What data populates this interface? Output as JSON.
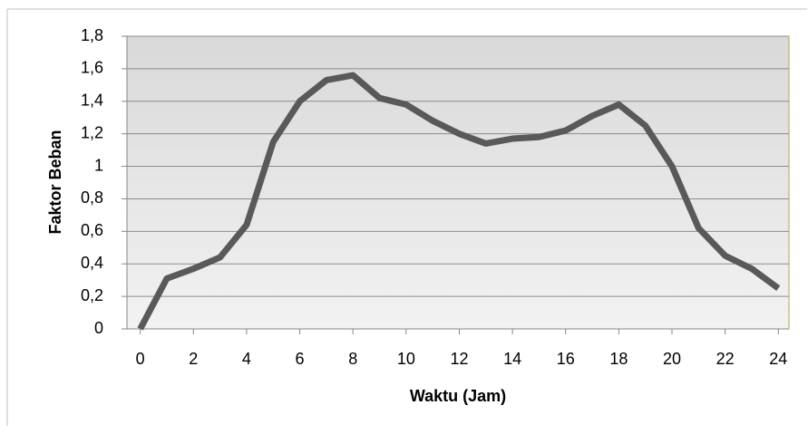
{
  "chart_data": {
    "type": "line",
    "x_label": "Waktu (Jam)",
    "y_label": "Faktor Beban",
    "x": [
      0,
      1,
      2,
      3,
      4,
      5,
      6,
      7,
      8,
      9,
      10,
      11,
      12,
      13,
      14,
      15,
      16,
      17,
      18,
      19,
      20,
      21,
      22,
      23,
      24
    ],
    "series": [
      {
        "color": "#595959",
        "values": [
          0,
          0.31,
          0.37,
          0.44,
          0.64,
          1.15,
          1.4,
          1.53,
          1.56,
          1.42,
          1.38,
          1.28,
          1.2,
          1.14,
          1.17,
          1.18,
          1.22,
          1.31,
          1.38,
          1.25,
          1.0,
          0.62,
          0.45,
          0.37,
          0.25
        ]
      }
    ],
    "xlim": [
      -0.5,
      24.4
    ],
    "xticks": [
      0,
      2,
      4,
      6,
      8,
      10,
      12,
      14,
      16,
      18,
      20,
      22,
      24
    ],
    "ylim": [
      0,
      1.8
    ],
    "yticks": [
      0,
      {
        "value": 0.2,
        "label": "0,2"
      },
      {
        "value": 0.4,
        "label": "0,4"
      },
      {
        "value": 0.6,
        "label": "0,6"
      },
      {
        "value": 0.8,
        "label": "0,8"
      },
      1,
      {
        "value": 1.2,
        "label": "1,2"
      },
      {
        "value": 1.4,
        "label": "1,4"
      },
      {
        "value": 1.6,
        "label": "1,6"
      },
      {
        "value": 1.8,
        "label": "1,8"
      }
    ],
    "grid": true
  }
}
